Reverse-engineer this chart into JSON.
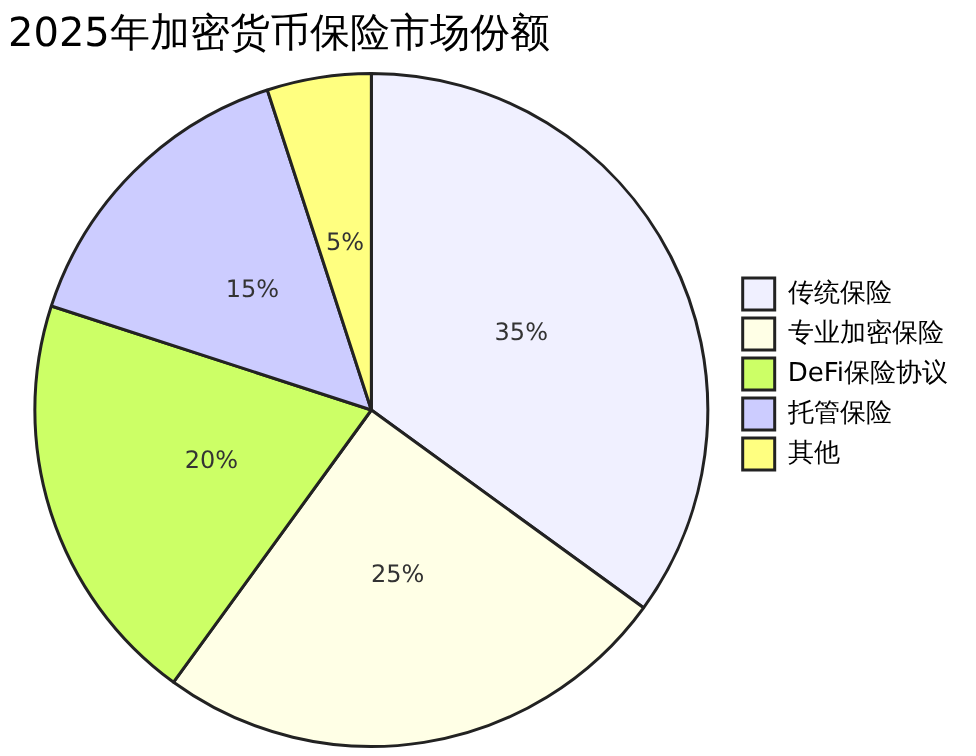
{
  "chart_data": {
    "type": "pie",
    "title": "2025年加密货币保险市场份额",
    "categories": [
      "传统保险",
      "专业加密保险",
      "DeFi保险协议",
      "托管保险",
      "其他"
    ],
    "values": [
      35,
      25,
      20,
      15,
      5
    ],
    "colors": [
      "#f0f0ff",
      "#ffffe6",
      "#ccff66",
      "#ccccff",
      "#ffff80"
    ],
    "value_labels": [
      "35%",
      "25%",
      "20%",
      "15%",
      "5%"
    ],
    "legend": "right"
  }
}
